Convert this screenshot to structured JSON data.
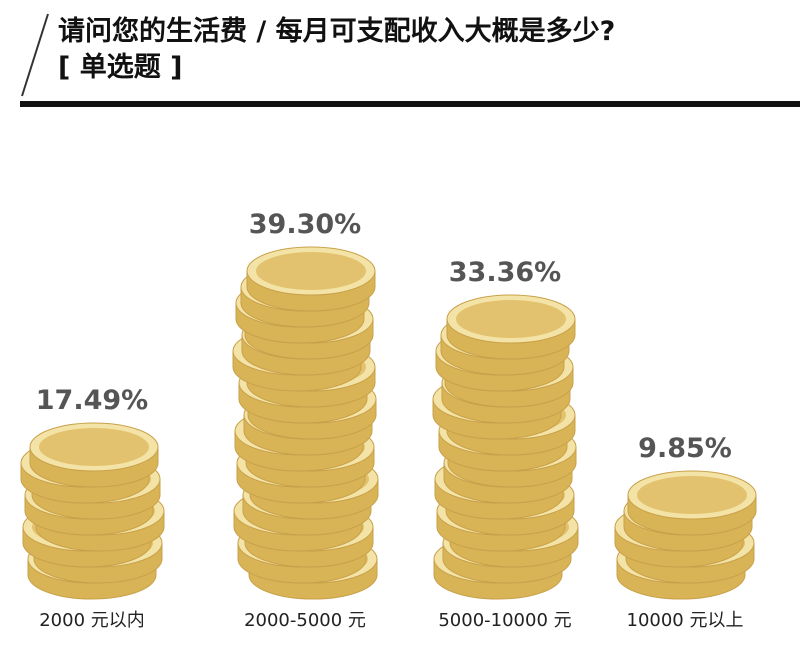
{
  "header": {
    "title": "请问您的生活费 / 每月可支配收入大概是多少?",
    "subtitle": "[ 单选题 ]"
  },
  "colors": {
    "coin_face": "#e2c26e",
    "coin_rim": "#f4e3a6",
    "coin_edge": "#d9b456",
    "coin_outline": "#c8a14a",
    "label_text": "#555555",
    "axis_text": "#222222"
  },
  "chart_data": {
    "type": "bar",
    "style": "coin-stack",
    "title": "请问您的生活费 / 每月可支配收入大概是多少?",
    "categories": [
      "2000 元以内",
      "2000-5000 元",
      "5000-10000 元",
      "10000 元以上"
    ],
    "values": [
      17.49,
      39.3,
      33.36,
      9.85
    ],
    "value_labels": [
      "17.49%",
      "39.30%",
      "33.36%",
      "9.85%"
    ],
    "unit": "%",
    "ylim": [
      0,
      40
    ],
    "grid": false,
    "legend": "none"
  }
}
